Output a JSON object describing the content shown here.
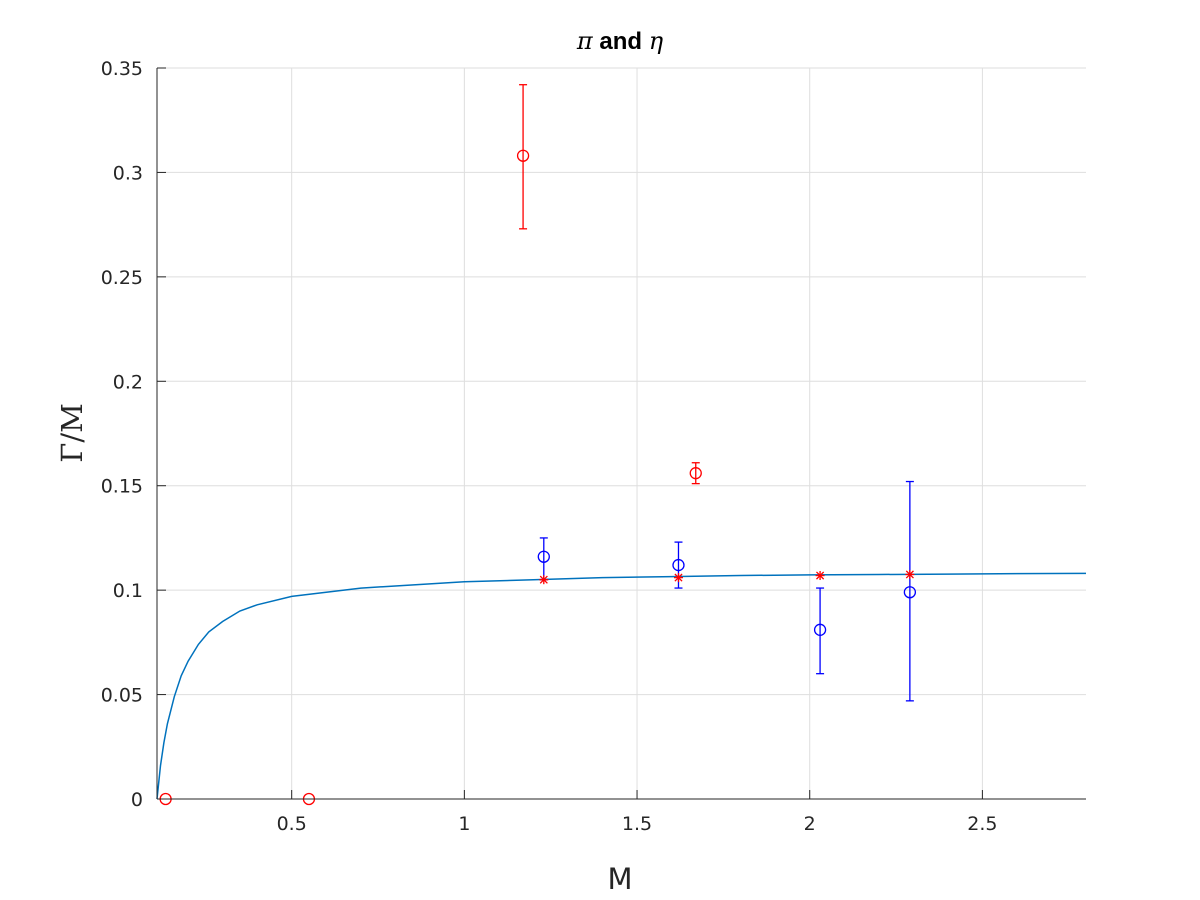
{
  "chart_data": {
    "type": "scatter",
    "title_parts": [
      "π",
      " and ",
      "η"
    ],
    "xlabel": "M",
    "ylabel": "Γ/M",
    "xlim": [
      0.11,
      2.8
    ],
    "ylim": [
      0,
      0.35
    ],
    "x_ticks": [
      0.5,
      1,
      1.5,
      2,
      2.5
    ],
    "x_tick_labels": [
      "0.5",
      "1",
      "1.5",
      "2",
      "2.5"
    ],
    "y_ticks": [
      0,
      0.05,
      0.1,
      0.15,
      0.2,
      0.25,
      0.3,
      0.35
    ],
    "y_tick_labels": [
      "0",
      "0.05",
      "0.1",
      "0.15",
      "0.2",
      "0.25",
      "0.3",
      "0.35"
    ],
    "grid": true,
    "colors": {
      "red": "#ff0000",
      "blue": "#0000ff",
      "curve": "#0072bd",
      "grid": "#dedede",
      "axis": "#262626"
    },
    "curve": {
      "x": [
        0.11,
        0.12,
        0.13,
        0.14,
        0.16,
        0.18,
        0.2,
        0.23,
        0.26,
        0.3,
        0.35,
        0.4,
        0.5,
        0.6,
        0.7,
        0.8,
        1.0,
        1.2,
        1.4,
        1.6,
        1.8,
        2.0,
        2.2,
        2.4,
        2.6,
        2.8
      ],
      "y": [
        0.0,
        0.016,
        0.027,
        0.036,
        0.049,
        0.059,
        0.066,
        0.074,
        0.08,
        0.085,
        0.09,
        0.093,
        0.097,
        0.099,
        0.101,
        0.102,
        0.104,
        0.105,
        0.106,
        0.1065,
        0.107,
        0.1073,
        0.1075,
        0.1077,
        0.1079,
        0.108
      ]
    },
    "series": [
      {
        "marker": "circle",
        "color": "#ff0000",
        "points": [
          {
            "x": 0.135,
            "y": 0.0
          },
          {
            "x": 0.55,
            "y": 0.0
          },
          {
            "x": 1.17,
            "y": 0.308,
            "err_low": 0.273,
            "err_high": 0.342
          },
          {
            "x": 1.67,
            "y": 0.156,
            "err_low": 0.151,
            "err_high": 0.161
          }
        ]
      },
      {
        "marker": "circle",
        "color": "#0000ff",
        "points": [
          {
            "x": 1.23,
            "y": 0.116,
            "err_low": 0.105,
            "err_high": 0.125
          },
          {
            "x": 1.62,
            "y": 0.112,
            "err_low": 0.101,
            "err_high": 0.123
          },
          {
            "x": 2.03,
            "y": 0.081,
            "err_low": 0.06,
            "err_high": 0.101
          },
          {
            "x": 2.29,
            "y": 0.099,
            "err_low": 0.047,
            "err_high": 0.152
          }
        ]
      },
      {
        "marker": "asterisk",
        "color": "#ff0000",
        "points": [
          {
            "x": 1.23,
            "y": 0.105
          },
          {
            "x": 1.62,
            "y": 0.106
          },
          {
            "x": 2.03,
            "y": 0.107
          },
          {
            "x": 2.29,
            "y": 0.1075
          }
        ]
      }
    ]
  }
}
